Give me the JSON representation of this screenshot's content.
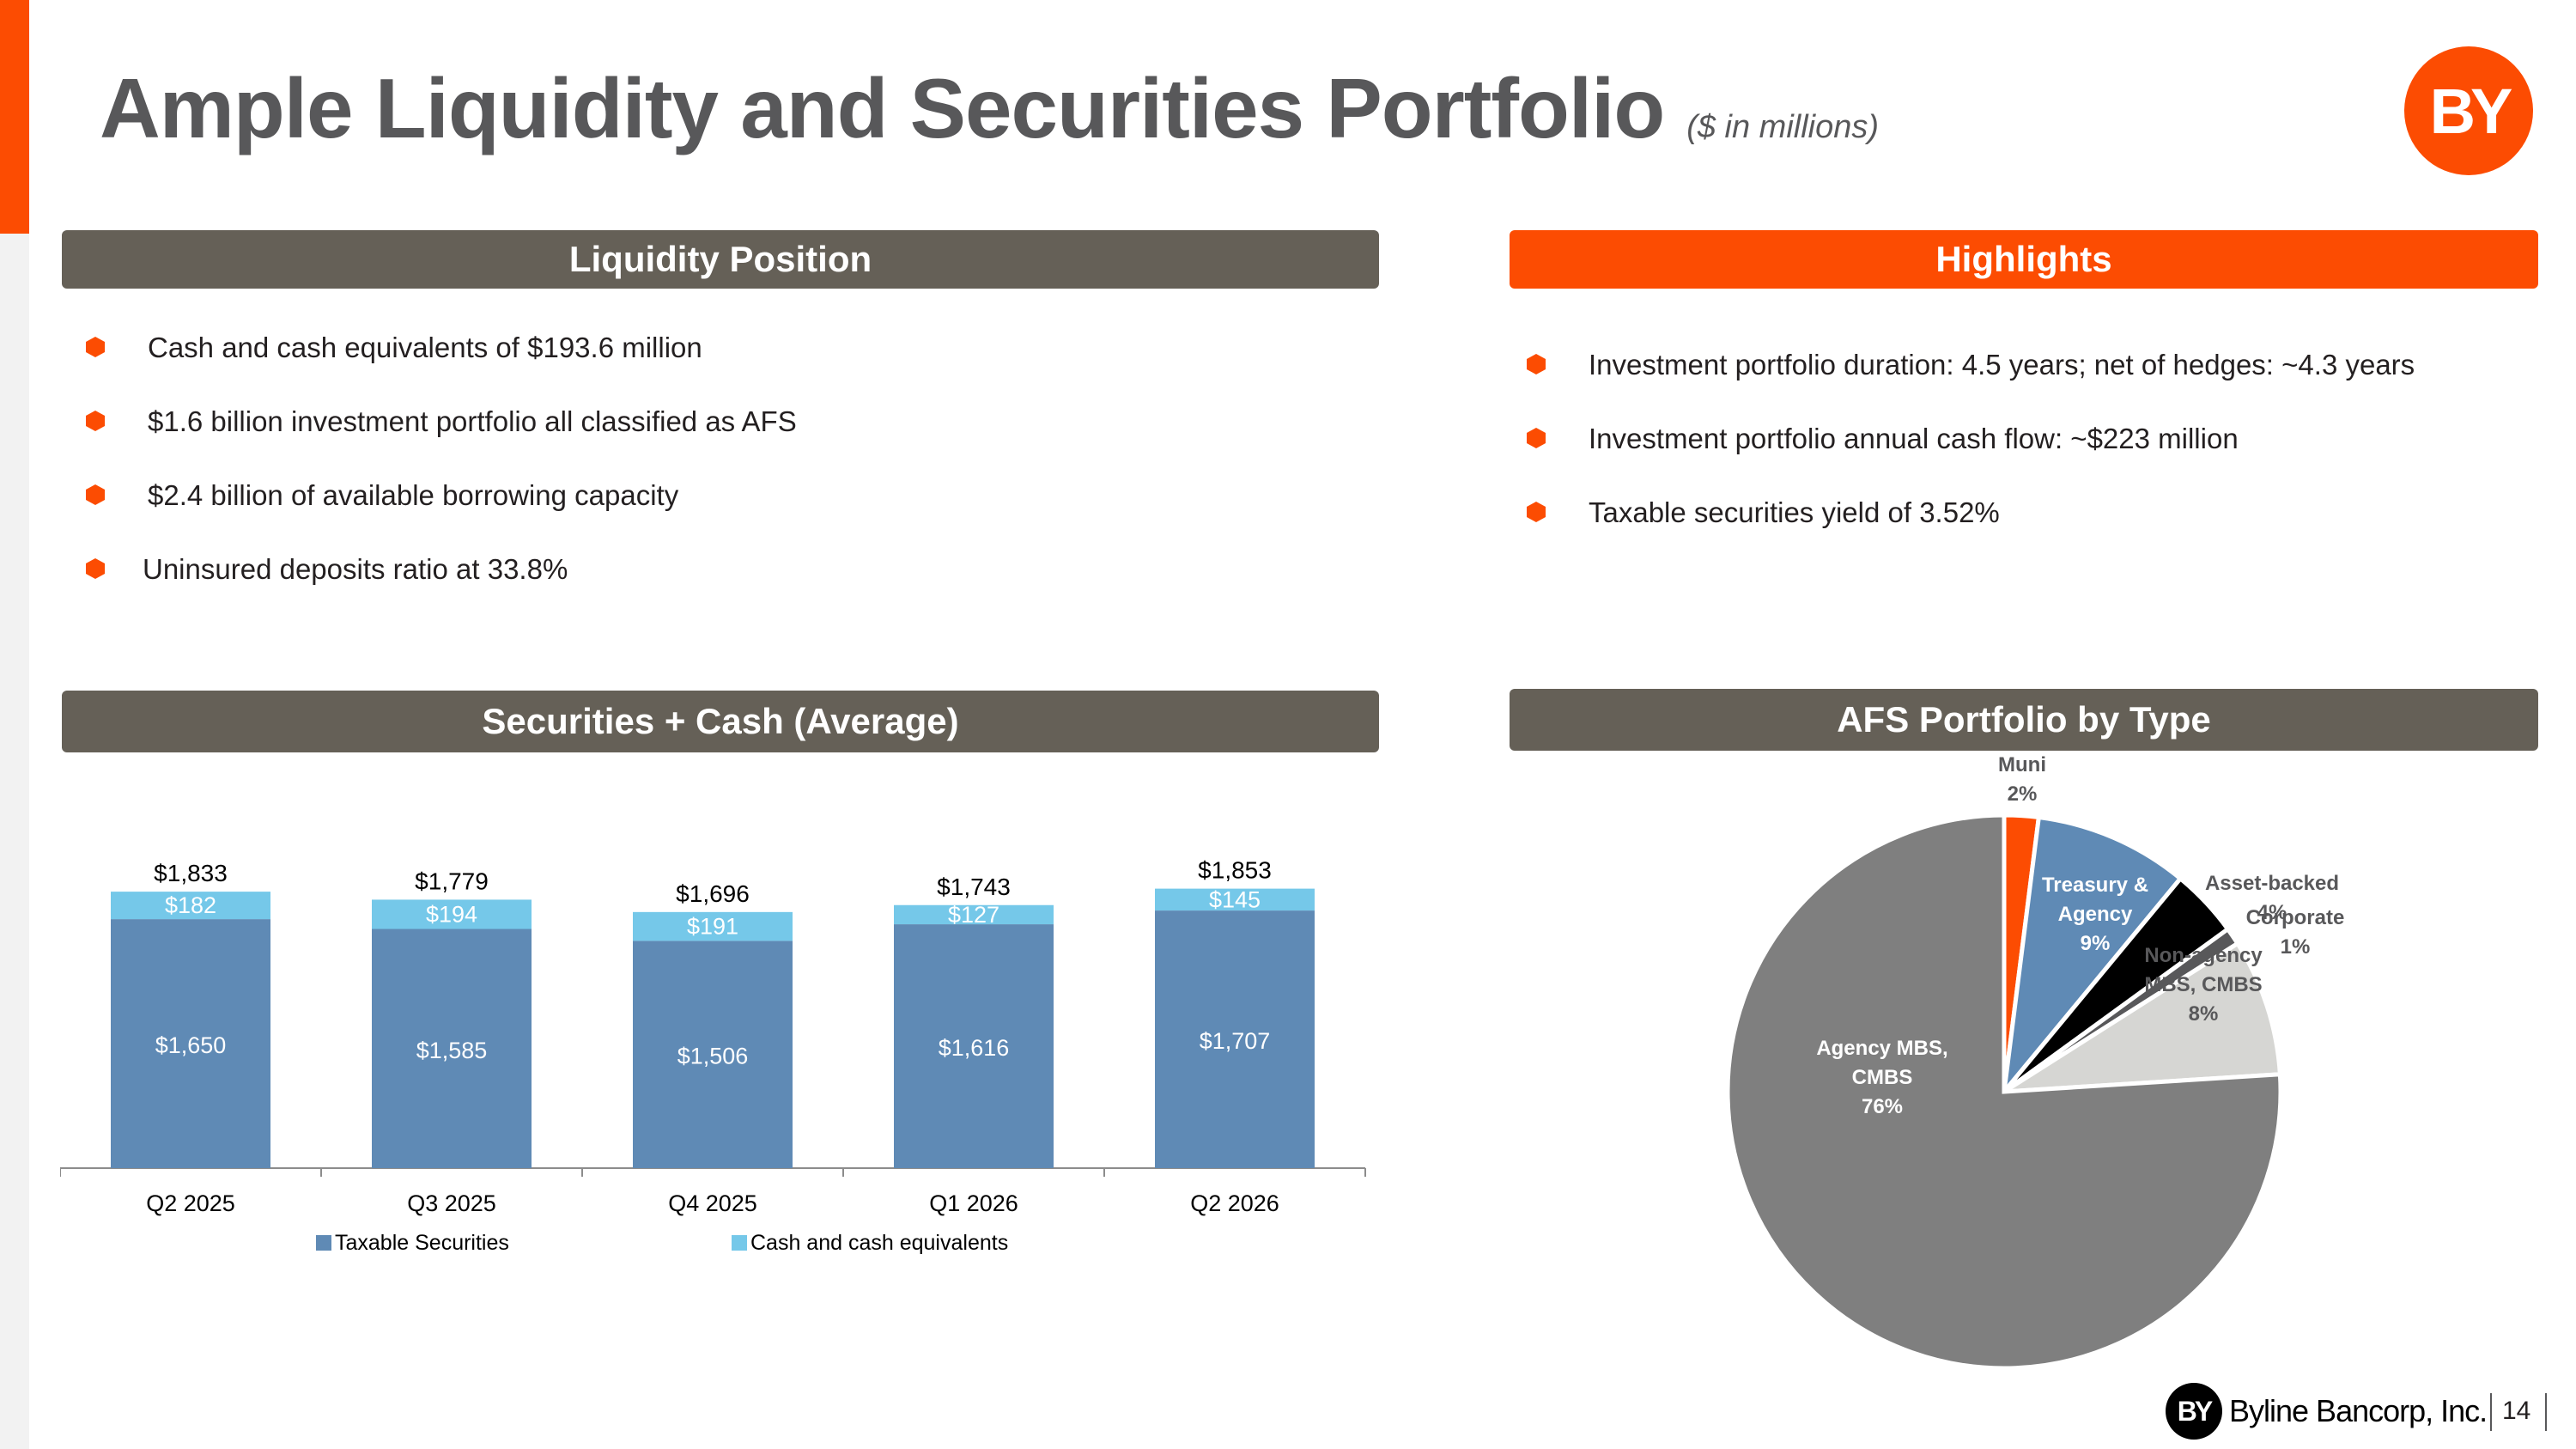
{
  "title": "Ample Liquidity and Securities Portfolio",
  "subtitle": "($ in millions)",
  "logo_text": "BY",
  "liquidity": {
    "header": "Liquidity Position",
    "bullets": [
      "Cash and cash equivalents of $193.6 million",
      "$1.6 billion investment portfolio all classified as AFS",
      "$2.4 billion of available borrowing capacity",
      "Uninsured deposits ratio at 33.8%"
    ]
  },
  "highlights": {
    "header": "Highlights",
    "bullets": [
      "Investment portfolio duration: 4.5 years; net of hedges: ~4.3 years",
      "Investment portfolio annual cash flow: ~$223 million",
      "Taxable securities yield of 3.52%"
    ]
  },
  "bar_header": "Securities + Cash (Average)",
  "pie_header": "AFS Portfolio by Type",
  "chart_data": [
    {
      "type": "bar",
      "stacked": true,
      "categories": [
        "Q2 2025",
        "Q3 2025",
        "Q4 2025",
        "Q1 2026",
        "Q2 2026"
      ],
      "series": [
        {
          "name": "Taxable Securities",
          "values": [
            1650,
            1585,
            1506,
            1616,
            1707
          ],
          "labels": [
            "$1,650",
            "$1,585",
            "$1,506",
            "$1,616",
            "$1,707"
          ],
          "color": "#5f8ab5"
        },
        {
          "name": "Cash and cash equivalents",
          "values": [
            182,
            194,
            191,
            127,
            145
          ],
          "labels": [
            "$182",
            "$194",
            "$191",
            "$127",
            "$145"
          ],
          "color": "#75c8e9"
        }
      ],
      "totals": [
        "$1,833",
        "$1,779",
        "$1,696",
        "$1,743",
        "$1,853"
      ],
      "ylim": [
        0,
        2000
      ],
      "grid": false,
      "legend": "bottom"
    },
    {
      "type": "pie",
      "slices": [
        {
          "label": "Muni",
          "pct": "2%",
          "value": 2,
          "color": "#fc4c02"
        },
        {
          "label": "Treasury & Agency",
          "pct": "9%",
          "value": 9,
          "color": "#5f8ab5"
        },
        {
          "label": "Asset-backed",
          "pct": "4%",
          "value": 4,
          "color": "#000000"
        },
        {
          "label": "Corporate",
          "pct": "1%",
          "value": 1,
          "color": "#58585a"
        },
        {
          "label": "Non-agency MBS, CMBS",
          "pct": "8%",
          "value": 8,
          "color": "#d6d6d3"
        },
        {
          "label": "Agency MBS, CMBS",
          "pct": "76%",
          "value": 76,
          "color": "#7f7f7f"
        }
      ]
    }
  ],
  "footer": {
    "logo_mark": "BY",
    "company": "Byline Bancorp, Inc.",
    "page": "14"
  }
}
